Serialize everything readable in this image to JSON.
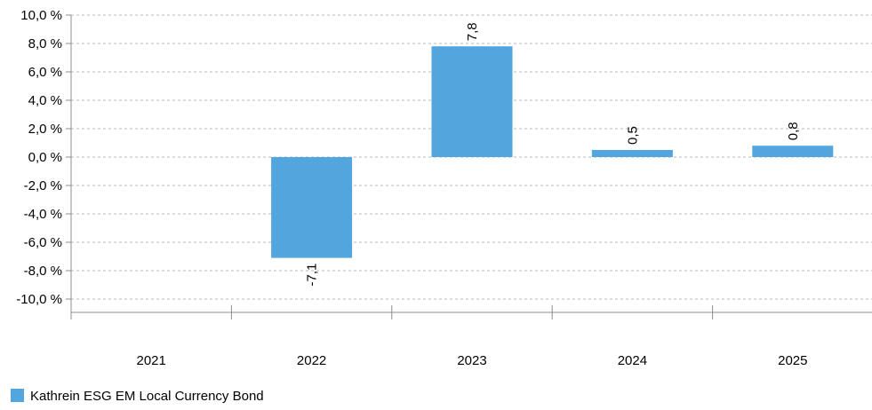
{
  "chart_data": {
    "type": "bar",
    "categories": [
      "2021",
      "2022",
      "2023",
      "2024",
      "2025"
    ],
    "series": [
      {
        "name": "Kathrein ESG EM Local Currency Bond",
        "values": [
          null,
          -7.1,
          7.8,
          0.5,
          0.8
        ],
        "labels": [
          "",
          "-7,1",
          "7,8",
          "0,5",
          "0,8"
        ],
        "color": "#52a6dd"
      }
    ],
    "ylim": [
      -10,
      10
    ],
    "yticks": [
      10,
      8,
      6,
      4,
      2,
      0,
      -2,
      -4,
      -6,
      -8,
      -10
    ],
    "ytick_labels": [
      "10,0 %",
      "8,0 %",
      "6,0 %",
      "4,0 %",
      "2,0 %",
      "0,0 %",
      "-2,0 %",
      "-4,0 %",
      "-6,0 %",
      "-8,0 %",
      "-10,0 %"
    ],
    "grid": true,
    "legend": "bottom-left"
  }
}
